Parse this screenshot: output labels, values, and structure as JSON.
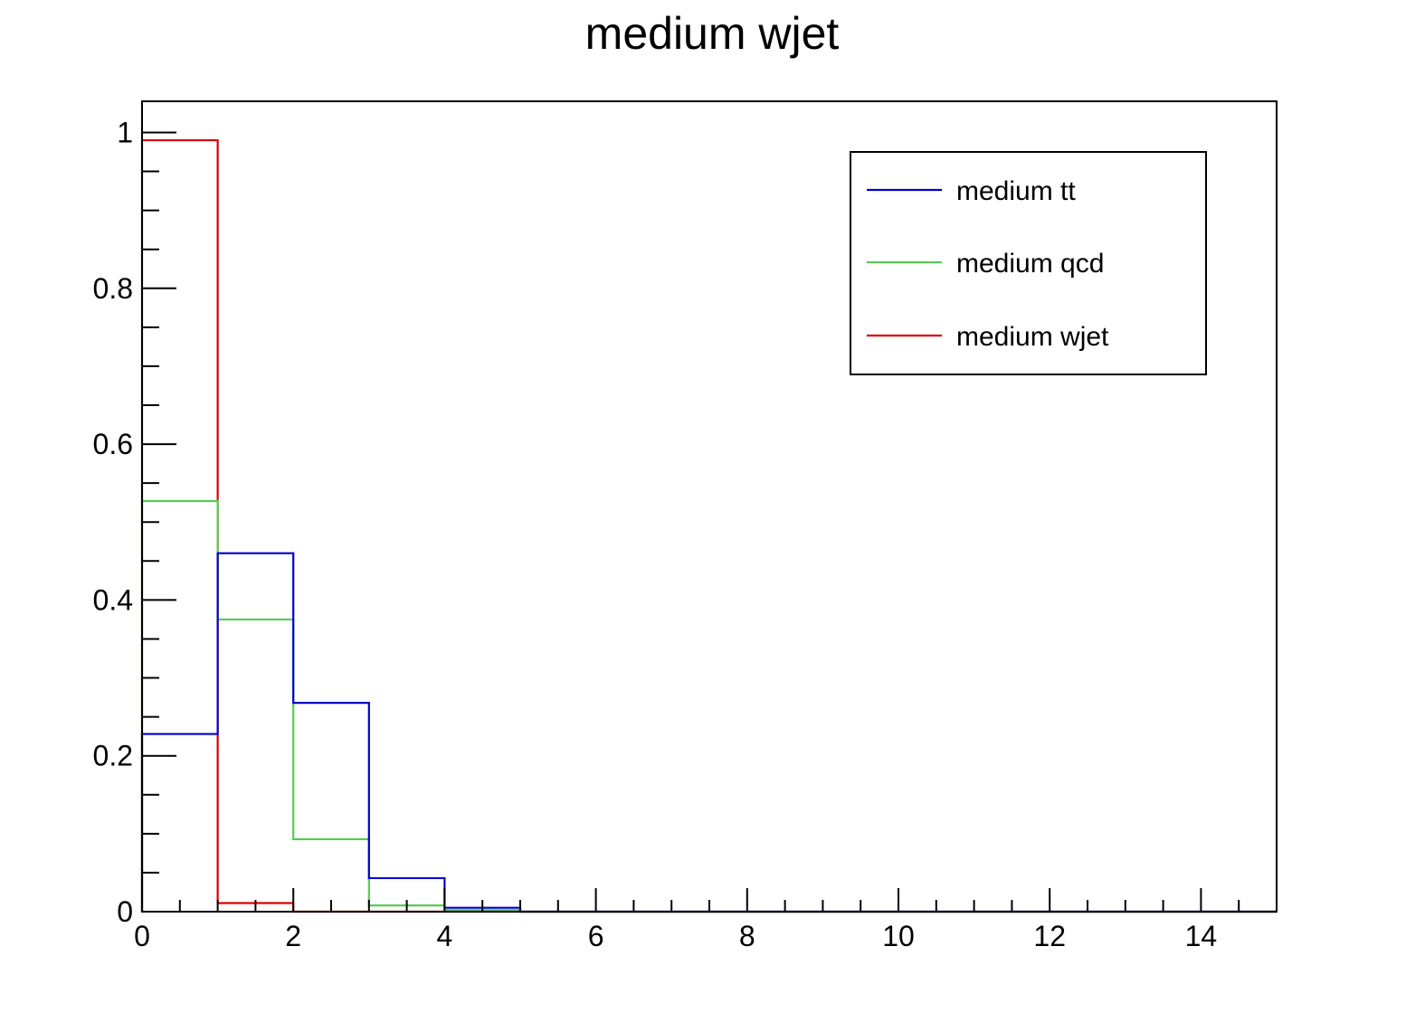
{
  "chart_data": {
    "type": "histogram",
    "title": "medium wjet",
    "xlabel": "",
    "ylabel": "",
    "xlim": [
      0,
      15
    ],
    "ylim": [
      0,
      1.04
    ],
    "x_ticks": [
      0,
      2,
      4,
      6,
      8,
      10,
      12,
      14
    ],
    "x_tick_labels": [
      "0",
      "2",
      "4",
      "6",
      "8",
      "10",
      "12",
      "14"
    ],
    "y_ticks": [
      0,
      0.2,
      0.4,
      0.6,
      0.8,
      1
    ],
    "y_tick_labels": [
      "0",
      "0.2",
      "0.4",
      "0.6",
      "0.8",
      "1"
    ],
    "bin_edges": [
      0,
      1,
      2,
      3,
      4,
      5,
      6,
      7,
      8,
      9,
      10,
      11,
      12,
      13,
      14,
      15
    ],
    "grid": false,
    "legend_position": "top-right",
    "series": [
      {
        "name": "medium wjet",
        "color": "#dd0000",
        "values": [
          0.99,
          0.011,
          0,
          0,
          0,
          0,
          0,
          0,
          0,
          0,
          0,
          0,
          0,
          0,
          0
        ]
      },
      {
        "name": "medium qcd",
        "color": "#55cc55",
        "values": [
          0.527,
          0.375,
          0.093,
          0.008,
          0.002,
          0,
          0,
          0,
          0,
          0,
          0,
          0,
          0,
          0,
          0
        ]
      },
      {
        "name": "medium tt",
        "color": "#0000cc",
        "values": [
          0.228,
          0.46,
          0.268,
          0.043,
          0.005,
          0,
          0,
          0,
          0,
          0,
          0,
          0,
          0,
          0,
          0
        ]
      }
    ],
    "legend_order": [
      "medium tt",
      "medium qcd",
      "medium wjet"
    ]
  }
}
